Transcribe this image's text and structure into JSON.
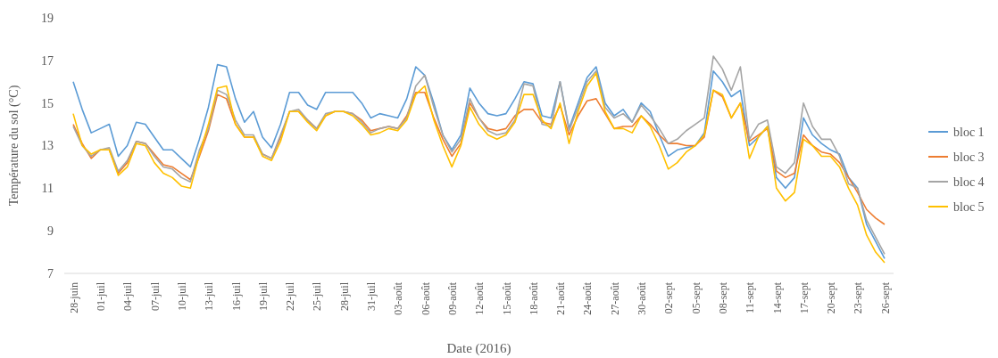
{
  "chart_data": {
    "type": "line",
    "xlabel": "Date (2016)",
    "ylabel": "Température du sol (°C)",
    "ylim": [
      7,
      19
    ],
    "yticks": [
      7,
      9,
      11,
      13,
      15,
      17,
      19
    ],
    "grid": false,
    "legend": "right",
    "marker": "none",
    "line_style": "solid",
    "categories": [
      "28-juin",
      null,
      null,
      "01-juil",
      null,
      null,
      "04-juil",
      null,
      null,
      "07-juil",
      null,
      null,
      "10-juil",
      null,
      null,
      "13-juil",
      null,
      null,
      "16-juil",
      null,
      null,
      "19-juil",
      null,
      null,
      "22-juil",
      null,
      null,
      "25-juil",
      null,
      null,
      "28-juil",
      null,
      null,
      "31-juil",
      null,
      null,
      "03-août",
      null,
      null,
      "06-août",
      null,
      null,
      "09-août",
      null,
      null,
      "12-août",
      null,
      null,
      "15-août",
      null,
      null,
      "18-août",
      null,
      null,
      "21-août",
      null,
      null,
      "24-août",
      null,
      null,
      "27-août",
      null,
      null,
      "30-août",
      null,
      null,
      "02-sept",
      null,
      null,
      "05-sept",
      null,
      null,
      "08-sept",
      null,
      null,
      "11-sept",
      null,
      null,
      "14-sept",
      null,
      null,
      "17-sept",
      null,
      null,
      "20-sept",
      null,
      null,
      "23-sept",
      null,
      null,
      "26-sept"
    ],
    "series": [
      {
        "name": "bloc 1",
        "color": "#5b9bd5",
        "values": [
          16.0,
          14.7,
          13.6,
          13.8,
          14.0,
          12.5,
          13.0,
          14.1,
          14.0,
          13.4,
          12.8,
          12.8,
          12.4,
          12.0,
          13.3,
          14.8,
          16.8,
          16.7,
          15.2,
          14.1,
          14.6,
          13.4,
          12.9,
          14.0,
          15.5,
          15.5,
          14.9,
          14.7,
          15.5,
          15.5,
          15.5,
          15.5,
          15.0,
          14.3,
          14.5,
          14.4,
          14.3,
          15.2,
          16.7,
          16.3,
          15.0,
          13.5,
          12.8,
          13.5,
          15.7,
          15.0,
          14.5,
          14.4,
          14.5,
          15.2,
          16.0,
          15.9,
          14.4,
          14.3,
          16.0,
          13.8,
          15.0,
          16.2,
          16.7,
          15.0,
          14.4,
          14.7,
          14.1,
          15.0,
          14.6,
          13.5,
          12.5,
          12.8,
          12.9,
          13.0,
          13.6,
          16.5,
          16.0,
          15.3,
          15.6,
          13.0,
          13.4,
          13.9,
          11.5,
          11.0,
          11.5,
          14.3,
          13.5,
          13.1,
          12.8,
          12.6,
          11.5,
          11.0,
          9.3,
          8.5,
          7.7
        ]
      },
      {
        "name": "bloc 3",
        "color": "#ed7d31",
        "values": [
          14.0,
          13.1,
          12.4,
          12.8,
          12.8,
          11.7,
          12.2,
          13.2,
          13.1,
          12.6,
          12.1,
          12.0,
          11.7,
          11.4,
          12.5,
          13.7,
          15.4,
          15.2,
          14.0,
          13.4,
          13.4,
          12.6,
          12.4,
          13.4,
          14.6,
          14.6,
          14.2,
          13.8,
          14.4,
          14.6,
          14.6,
          14.5,
          14.2,
          13.7,
          13.8,
          13.9,
          13.8,
          14.4,
          15.5,
          15.5,
          14.3,
          13.3,
          12.5,
          13.1,
          15.0,
          14.3,
          13.8,
          13.7,
          13.8,
          14.4,
          14.7,
          14.7,
          14.1,
          14.0,
          14.9,
          13.5,
          14.4,
          15.1,
          15.2,
          14.5,
          13.8,
          13.9,
          13.9,
          14.4,
          14.0,
          13.5,
          13.1,
          13.1,
          13.0,
          13.0,
          13.4,
          15.6,
          15.3,
          14.3,
          15.0,
          13.2,
          13.5,
          13.8,
          11.8,
          11.5,
          11.7,
          13.5,
          13.0,
          12.7,
          12.6,
          12.2,
          11.5,
          10.8,
          10.0,
          9.6,
          9.3
        ]
      },
      {
        "name": "bloc 4",
        "color": "#a5a5a5",
        "values": [
          13.9,
          13.0,
          12.5,
          12.8,
          12.9,
          11.8,
          12.3,
          13.2,
          13.1,
          12.5,
          12.0,
          11.9,
          11.5,
          11.3,
          12.8,
          13.8,
          15.6,
          15.4,
          14.2,
          13.5,
          13.5,
          12.6,
          12.4,
          13.5,
          14.6,
          14.7,
          14.2,
          13.8,
          14.5,
          14.6,
          14.6,
          14.5,
          14.1,
          13.6,
          13.8,
          13.9,
          13.8,
          14.3,
          15.8,
          16.3,
          14.8,
          13.5,
          12.7,
          13.3,
          15.2,
          14.3,
          13.7,
          13.5,
          13.6,
          14.2,
          15.9,
          15.8,
          14.0,
          13.9,
          16.0,
          13.7,
          14.8,
          16.0,
          16.5,
          14.8,
          14.3,
          14.5,
          14.1,
          14.9,
          14.4,
          13.8,
          13.1,
          13.3,
          13.7,
          14.0,
          14.3,
          17.2,
          16.6,
          15.6,
          16.7,
          13.3,
          14.0,
          14.2,
          12.0,
          11.7,
          12.2,
          15.0,
          13.9,
          13.3,
          13.3,
          12.5,
          11.2,
          11.0,
          9.5,
          8.7,
          7.9
        ]
      },
      {
        "name": "bloc 5",
        "color": "#ffc000",
        "values": [
          14.5,
          13.0,
          12.6,
          12.8,
          12.8,
          11.6,
          12.0,
          13.1,
          13.0,
          12.2,
          11.7,
          11.5,
          11.1,
          11.0,
          12.6,
          14.0,
          15.7,
          15.8,
          14.0,
          13.4,
          13.4,
          12.5,
          12.3,
          13.2,
          14.6,
          14.6,
          14.1,
          13.7,
          14.4,
          14.6,
          14.6,
          14.4,
          14.0,
          13.5,
          13.6,
          13.8,
          13.7,
          14.2,
          15.4,
          15.8,
          14.2,
          13.0,
          12.0,
          13.0,
          14.8,
          14.0,
          13.5,
          13.3,
          13.5,
          14.1,
          15.4,
          15.4,
          14.2,
          13.8,
          15.0,
          13.1,
          14.6,
          15.8,
          16.4,
          14.6,
          13.8,
          13.8,
          13.6,
          14.4,
          13.9,
          13.0,
          11.9,
          12.2,
          12.7,
          13.0,
          13.5,
          15.6,
          15.4,
          14.3,
          15.0,
          12.4,
          13.4,
          13.9,
          11.0,
          10.4,
          10.8,
          13.3,
          13.0,
          12.5,
          12.5,
          12.0,
          11.0,
          10.2,
          8.8,
          8.0,
          7.5
        ]
      }
    ]
  }
}
